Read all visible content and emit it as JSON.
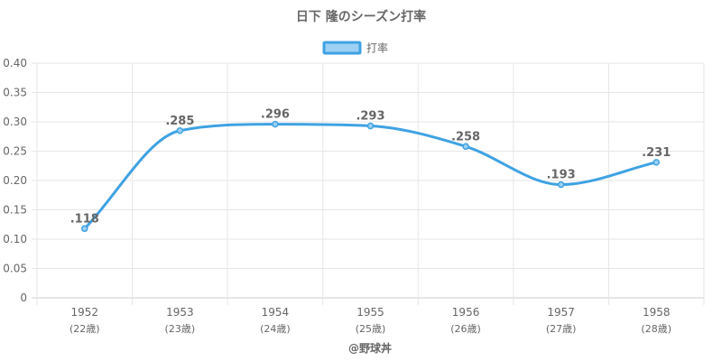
{
  "chart_data": {
    "type": "line",
    "title": "日下 隆のシーズン打率",
    "categories": [
      "1952",
      "1953",
      "1954",
      "1955",
      "1956",
      "1957",
      "1958"
    ],
    "category_sublabels": [
      "(22歳)",
      "(23歳)",
      "(24歳)",
      "(25歳)",
      "(26歳)",
      "(27歳)",
      "(28歳)"
    ],
    "series": [
      {
        "name": "打率",
        "values": [
          0.118,
          0.285,
          0.296,
          0.293,
          0.258,
          0.193,
          0.231
        ],
        "labels": [
          ".118",
          ".285",
          ".296",
          ".293",
          ".258",
          ".193",
          ".231"
        ],
        "color": "#3fa2e3",
        "fill_color": "#9dd0f3"
      }
    ],
    "ylim": [
      0,
      0.4
    ],
    "yticks": [
      "0",
      "0.05",
      "0.10",
      "0.15",
      "0.20",
      "0.25",
      "0.30",
      "0.35",
      "0.40"
    ],
    "grid": true,
    "legend_position": "top",
    "credit": "@野球丼"
  }
}
